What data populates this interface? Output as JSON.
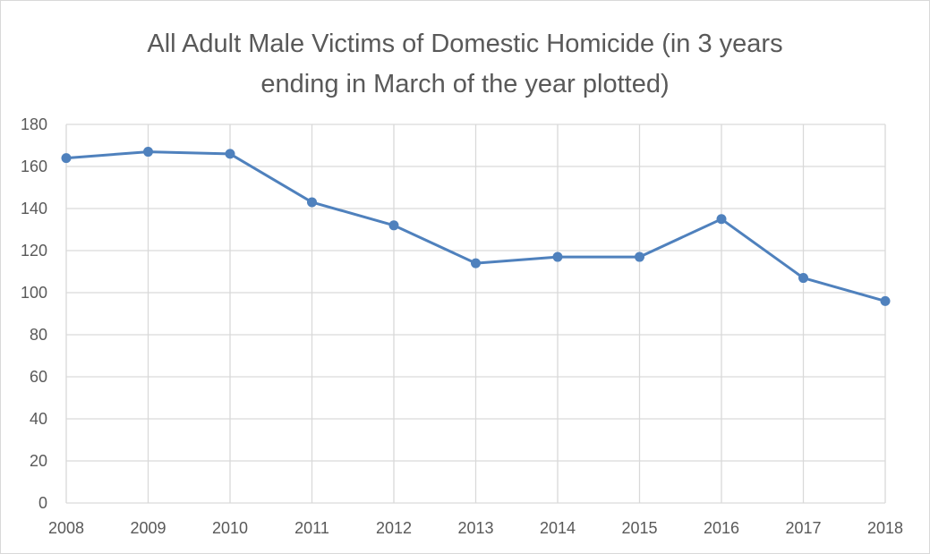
{
  "chart_data": {
    "type": "line",
    "title_lines": [
      "All Adult Male Victims of Domestic Homicide (in 3 years",
      "ending in March of the year plotted)"
    ],
    "xlabel": "",
    "ylabel": "",
    "x": [
      "2008",
      "2009",
      "2010",
      "2011",
      "2012",
      "2013",
      "2014",
      "2015",
      "2016",
      "2017",
      "2018"
    ],
    "series": [
      {
        "values": [
          164,
          167,
          166,
          143,
          132,
          114,
          117,
          117,
          135,
          107,
          96
        ]
      }
    ],
    "ylim": [
      0,
      180
    ],
    "yticks": [
      0,
      20,
      40,
      60,
      80,
      100,
      120,
      140,
      160,
      180
    ],
    "grid": true,
    "legend": "none",
    "colors": {
      "line": "#4f81bd",
      "grid": "#d9d9d9",
      "text": "#595959"
    }
  }
}
